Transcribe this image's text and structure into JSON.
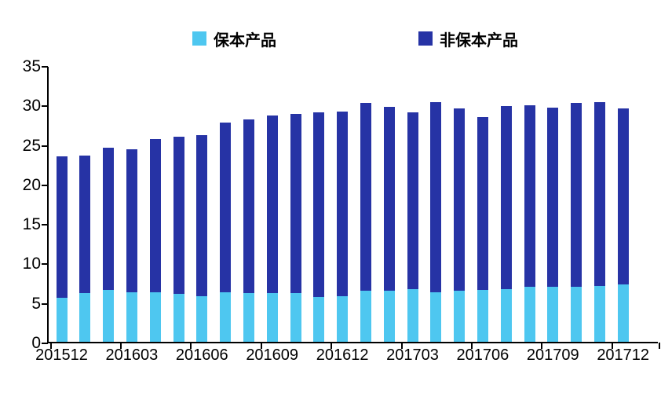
{
  "legend": {
    "items": [
      {
        "label": "保本产品",
        "color": "#4EC7F0"
      },
      {
        "label": "非保本产品",
        "color": "#2633A5"
      }
    ]
  },
  "chart_data": {
    "type": "bar",
    "stacked": true,
    "orientation": "vertical",
    "categories": [
      "201512",
      "201601",
      "201602",
      "201603",
      "201604",
      "201605",
      "201606",
      "201607",
      "201608",
      "201609",
      "201610",
      "201611",
      "201612",
      "201701",
      "201702",
      "201703",
      "201704",
      "201705",
      "201706",
      "201707",
      "201708",
      "201709",
      "201710",
      "201711",
      "201712"
    ],
    "x_tick_labels": [
      "201512",
      "201603",
      "201606",
      "201609",
      "201612",
      "201703",
      "201706",
      "201709",
      "201712"
    ],
    "x_label_every": 3,
    "series": [
      {
        "name": "保本产品",
        "color": "#4EC7F0",
        "values": [
          5.6,
          6.2,
          6.6,
          6.3,
          6.3,
          6.1,
          5.8,
          6.3,
          6.2,
          6.2,
          6.2,
          5.7,
          5.8,
          6.5,
          6.5,
          6.7,
          6.3,
          6.5,
          6.6,
          6.7,
          7.0,
          7.0,
          7.0,
          7.1,
          7.3
        ]
      },
      {
        "name": "非保本产品",
        "color": "#2633A5",
        "values": [
          17.9,
          17.4,
          18.0,
          18.1,
          19.4,
          19.9,
          20.4,
          21.4,
          21.9,
          22.4,
          22.6,
          23.3,
          23.3,
          23.7,
          23.2,
          22.3,
          24.0,
          23.0,
          21.8,
          23.1,
          22.9,
          22.6,
          23.2,
          23.2,
          22.2
        ]
      }
    ],
    "totals": [
      23.5,
      23.6,
      24.6,
      24.4,
      25.7,
      26.0,
      26.2,
      27.7,
      28.1,
      28.6,
      28.8,
      29.0,
      29.1,
      30.2,
      29.7,
      29.0,
      30.3,
      29.5,
      28.4,
      29.8,
      29.9,
      29.6,
      30.2,
      30.3,
      29.5
    ],
    "title": "",
    "xlabel": "",
    "ylabel": "",
    "ylim": [
      0,
      35
    ],
    "y_ticks": [
      0,
      5,
      10,
      15,
      20,
      25,
      30,
      35
    ],
    "grid": false,
    "legend_position": "top",
    "axis_color": "#000000",
    "background_color": "#FFFFFF"
  }
}
